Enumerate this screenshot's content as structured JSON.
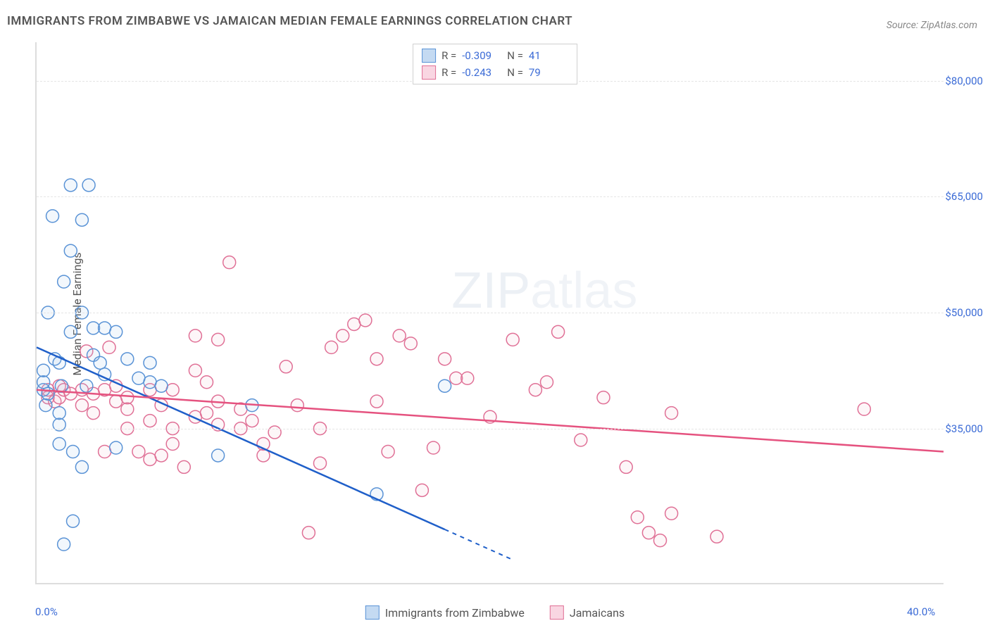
{
  "title": "IMMIGRANTS FROM ZIMBABWE VS JAMAICAN MEDIAN FEMALE EARNINGS CORRELATION CHART",
  "source": "Source: ZipAtlas.com",
  "y_axis_title": "Median Female Earnings",
  "watermark": "ZIPatlas",
  "chart": {
    "type": "scatter",
    "background_color": "#ffffff",
    "grid_color": "#e5e5e5",
    "axis_color": "#dddddd",
    "label_color": "#3b6bd6",
    "text_color": "#555555",
    "xlim": [
      0,
      40
    ],
    "ylim": [
      15000,
      85000
    ],
    "x_ticks": [
      {
        "v": 0,
        "label": "0.0%"
      },
      {
        "v": 40,
        "label": "40.0%"
      }
    ],
    "y_ticks": [
      {
        "v": 35000,
        "label": "$35,000"
      },
      {
        "v": 50000,
        "label": "$50,000"
      },
      {
        "v": 65000,
        "label": "$65,000"
      },
      {
        "v": 80000,
        "label": "$80,000"
      }
    ],
    "marker_radius": 9,
    "marker_stroke_width": 1.5,
    "marker_fill_opacity": 0.15,
    "line_width": 2.5,
    "series": [
      {
        "name": "Immigrants from Zimbabwe",
        "color_stroke": "#5a93d6",
        "color_fill": "#a9c9ec",
        "swatch_fill": "#c4daf2",
        "swatch_stroke": "#5a93d6",
        "R": "-0.309",
        "N": "41",
        "trend": {
          "x1": 0,
          "y1": 45500,
          "x2": 21,
          "y2": 18000,
          "dash_from_x": 18
        },
        "points": [
          [
            0.3,
            40000
          ],
          [
            0.3,
            41000
          ],
          [
            0.3,
            42500
          ],
          [
            0.4,
            38000
          ],
          [
            0.5,
            50000
          ],
          [
            0.5,
            39500
          ],
          [
            0.7,
            62500
          ],
          [
            0.8,
            44000
          ],
          [
            1.0,
            33000
          ],
          [
            1.0,
            35500
          ],
          [
            1.0,
            37000
          ],
          [
            1.0,
            43500
          ],
          [
            1.1,
            40500
          ],
          [
            1.2,
            54000
          ],
          [
            1.2,
            20000
          ],
          [
            1.5,
            66500
          ],
          [
            1.5,
            47500
          ],
          [
            1.5,
            58000
          ],
          [
            1.6,
            23000
          ],
          [
            1.6,
            32000
          ],
          [
            2.0,
            62000
          ],
          [
            2.0,
            50000
          ],
          [
            2.0,
            30000
          ],
          [
            2.2,
            40500
          ],
          [
            2.3,
            66500
          ],
          [
            2.5,
            44500
          ],
          [
            2.5,
            48000
          ],
          [
            2.8,
            43500
          ],
          [
            3.0,
            48000
          ],
          [
            3.0,
            42000
          ],
          [
            3.5,
            47500
          ],
          [
            3.5,
            32500
          ],
          [
            4.0,
            44000
          ],
          [
            4.5,
            41500
          ],
          [
            5.0,
            41000
          ],
          [
            5.0,
            43500
          ],
          [
            5.5,
            40500
          ],
          [
            8.0,
            31500
          ],
          [
            9.5,
            38000
          ],
          [
            15.0,
            26500
          ],
          [
            18.0,
            40500
          ]
        ]
      },
      {
        "name": "Jamaicans",
        "color_stroke": "#e07096",
        "color_fill": "#f4c0d2",
        "swatch_fill": "#f9d6e2",
        "swatch_stroke": "#e07096",
        "R": "-0.243",
        "N": "79",
        "trend": {
          "x1": 0,
          "y1": 40000,
          "x2": 40,
          "y2": 32000,
          "dash_from_x": 40
        },
        "points": [
          [
            0.5,
            39000
          ],
          [
            0.5,
            40000
          ],
          [
            0.8,
            38500
          ],
          [
            1.0,
            40500
          ],
          [
            1.0,
            39000
          ],
          [
            1.2,
            40000
          ],
          [
            1.5,
            39500
          ],
          [
            2.0,
            38000
          ],
          [
            2.0,
            40000
          ],
          [
            2.2,
            45000
          ],
          [
            2.5,
            39500
          ],
          [
            2.5,
            37000
          ],
          [
            3.0,
            40000
          ],
          [
            3.0,
            32000
          ],
          [
            3.2,
            45500
          ],
          [
            3.5,
            38500
          ],
          [
            3.5,
            40500
          ],
          [
            4.0,
            35000
          ],
          [
            4.0,
            37500
          ],
          [
            4.0,
            39000
          ],
          [
            4.5,
            32000
          ],
          [
            5.0,
            36000
          ],
          [
            5.0,
            40000
          ],
          [
            5.0,
            31000
          ],
          [
            5.5,
            38000
          ],
          [
            5.5,
            31500
          ],
          [
            6.0,
            35000
          ],
          [
            6.0,
            40000
          ],
          [
            6.5,
            30000
          ],
          [
            7.0,
            47000
          ],
          [
            7.0,
            36500
          ],
          [
            7.0,
            42500
          ],
          [
            7.5,
            41000
          ],
          [
            7.5,
            37000
          ],
          [
            8.0,
            46500
          ],
          [
            8.0,
            38500
          ],
          [
            8.0,
            35500
          ],
          [
            8.5,
            56500
          ],
          [
            9.0,
            37500
          ],
          [
            9.0,
            35000
          ],
          [
            9.5,
            36000
          ],
          [
            10.0,
            33000
          ],
          [
            10.0,
            31500
          ],
          [
            10.5,
            34500
          ],
          [
            11.0,
            43000
          ],
          [
            11.5,
            38000
          ],
          [
            12.0,
            21500
          ],
          [
            12.5,
            30500
          ],
          [
            12.5,
            35000
          ],
          [
            13.0,
            45500
          ],
          [
            13.5,
            47000
          ],
          [
            14.0,
            48500
          ],
          [
            14.5,
            49000
          ],
          [
            15.0,
            38500
          ],
          [
            15.0,
            44000
          ],
          [
            15.5,
            32000
          ],
          [
            16.0,
            47000
          ],
          [
            16.5,
            46000
          ],
          [
            17.0,
            27000
          ],
          [
            17.5,
            32500
          ],
          [
            18.0,
            44000
          ],
          [
            18.5,
            41500
          ],
          [
            19.0,
            41500
          ],
          [
            20.0,
            36500
          ],
          [
            21.0,
            46500
          ],
          [
            22.0,
            40000
          ],
          [
            22.5,
            41000
          ],
          [
            23.0,
            47500
          ],
          [
            24.0,
            33500
          ],
          [
            25.0,
            39000
          ],
          [
            26.0,
            30000
          ],
          [
            26.5,
            23500
          ],
          [
            27.0,
            21500
          ],
          [
            27.5,
            20500
          ],
          [
            28.0,
            24000
          ],
          [
            28.0,
            37000
          ],
          [
            30.0,
            21000
          ],
          [
            36.5,
            37500
          ],
          [
            6.0,
            33000
          ]
        ]
      }
    ]
  },
  "legend_bottom": [
    {
      "label": "Immigrants from Zimbabwe",
      "swatch": 0
    },
    {
      "label": "Jamaicans",
      "swatch": 1
    }
  ]
}
